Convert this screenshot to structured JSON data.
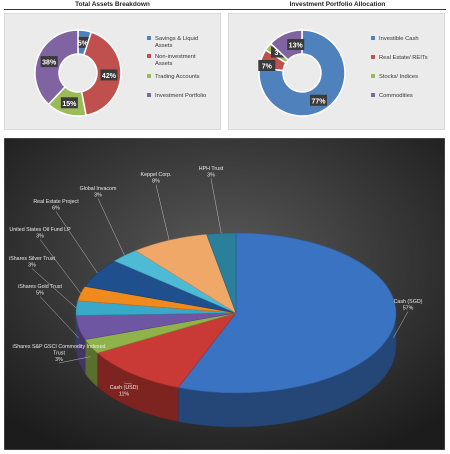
{
  "chart_data": [
    {
      "type": "pie",
      "style": "donut",
      "title": "Total Assets Breakdown",
      "legend_position": "right",
      "categories": [
        "Savings & Liquid Assets",
        "Non-investment Assets",
        "Trading Accounts",
        "Investment Portfolio"
      ],
      "values": [
        5,
        42,
        15,
        38
      ],
      "data_labels": [
        "5%",
        "42%",
        "15%",
        "38%"
      ],
      "colors": [
        "#4f81bd",
        "#c0504d",
        "#9bbb59",
        "#8064a2"
      ]
    },
    {
      "type": "pie",
      "style": "donut",
      "title": "Investment Portfolio Allocation",
      "legend_position": "right",
      "categories": [
        "Investible Cash",
        "Real Estate/ REITs",
        "Stocks/ Indices",
        "Commodities"
      ],
      "values": [
        77,
        7,
        3,
        13
      ],
      "data_labels": [
        "77%",
        "7%",
        "3%",
        "13%"
      ],
      "colors": [
        "#4f81bd",
        "#c0504d",
        "#9bbb59",
        "#8064a2"
      ]
    },
    {
      "type": "pie",
      "style": "3d",
      "title": "",
      "categories": [
        "Cash (SGD)",
        "Cash (USD)",
        "iShares S&P GSCI Commodity Indexed Trust",
        "iShares Gold Trust",
        "iShares Silver Trust",
        "United States Oil Fund LP",
        "Real Estate Project",
        "Global Invacom",
        "Keppel Corp",
        "HPH Trust"
      ],
      "label_names": [
        "Cash (SGD)",
        "Cash (USD)",
        "iShares S&P GSCI Commodity Indexed Trust",
        "iShares Gold Trust",
        "iShares Silver Trust",
        "United States Oil Fund LP",
        "Real Estate Project",
        "Global Invacom",
        "Keppel Corp.",
        "HPH Trust"
      ],
      "values": [
        57,
        11,
        3,
        5,
        3,
        3,
        6,
        3,
        8,
        3
      ],
      "data_labels": [
        "57%",
        "11%",
        "3%",
        "5%",
        "3%",
        "3%",
        "6%",
        "3%",
        "8%",
        "3%"
      ],
      "colors": [
        "#3a73c2",
        "#c93a36",
        "#8fb34a",
        "#6f56a3",
        "#3aa8c8",
        "#f08a1c",
        "#1f4f8c",
        "#4dbad6",
        "#f0a868",
        "#2a7f9a"
      ]
    }
  ]
}
